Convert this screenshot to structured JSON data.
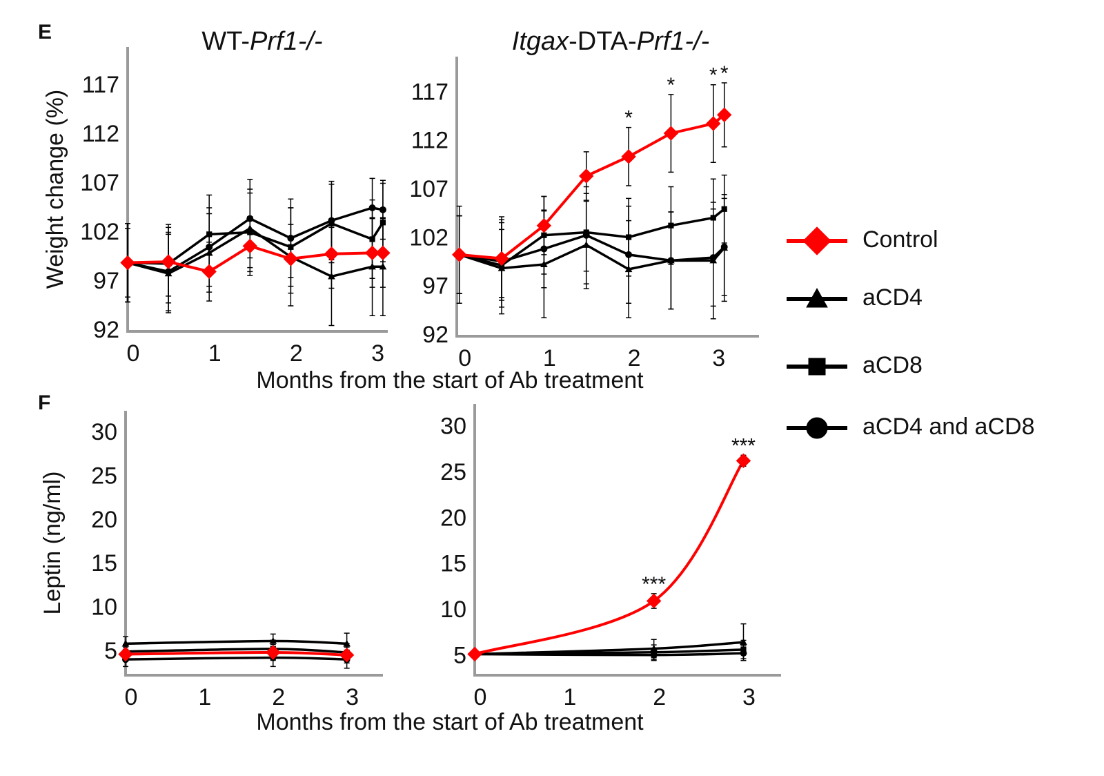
{
  "chart_data": [
    {
      "type": "line",
      "panel": "E",
      "title": [
        "WT-",
        "Prf1-/-"
      ],
      "title_italic": [
        false,
        true
      ],
      "ylabel": "Weight change (%)",
      "xlabel": "Months from the start of Ab treatment",
      "x": [
        0,
        0.5,
        1,
        1.5,
        2,
        2.5,
        3,
        3.13
      ],
      "xlim": [
        0,
        3.19
      ],
      "xticks": [
        0,
        1,
        2,
        3
      ],
      "ylim": [
        92,
        121
      ],
      "yticks": [
        92,
        97,
        102,
        107,
        112,
        117
      ],
      "series": [
        {
          "name": "Control",
          "color": "#ff0000",
          "marker": "diamond",
          "values": [
            99.0,
            99.1,
            98.1,
            100.7,
            99.4,
            99.9,
            100.0,
            100.0
          ],
          "errors": [
            3.5,
            3.5,
            3,
            3,
            3.5,
            3.5,
            3.5,
            3.5
          ]
        },
        {
          "name": "aCD4",
          "color": "#000000",
          "marker": "triangle",
          "values": [
            99.0,
            97.9,
            100.0,
            102.5,
            99.6,
            97.6,
            98.6,
            98.6
          ],
          "errors": [
            4,
            4,
            4,
            4,
            5,
            5,
            5,
            5
          ]
        },
        {
          "name": "aCD8",
          "color": "#000000",
          "marker": "square",
          "values": [
            99.0,
            98.9,
            101.9,
            102.1,
            100.6,
            103.0,
            101.4,
            103.1
          ],
          "errors": [
            4,
            4,
            4,
            4,
            4,
            4,
            4,
            4
          ]
        },
        {
          "name": "aCD4 and aCD8",
          "color": "#000000",
          "marker": "circle",
          "values": [
            99.0,
            98.1,
            100.6,
            103.5,
            101.5,
            103.3,
            104.6,
            104.4
          ],
          "errors": [
            4,
            4,
            4,
            4,
            4,
            4,
            3,
            3
          ]
        }
      ]
    },
    {
      "type": "line",
      "title": [
        "Itgax",
        "-DTA-",
        "Prf1-/-"
      ],
      "title_italic": [
        true,
        false,
        true
      ],
      "x": [
        0,
        0.5,
        1,
        1.5,
        2,
        2.5,
        3,
        3.13
      ],
      "xlim": [
        -0.03,
        3.54
      ],
      "xticks": [
        0,
        1,
        2,
        3
      ],
      "ylim": [
        92,
        120.8
      ],
      "yticks": [
        92,
        97,
        102,
        107,
        112,
        117
      ],
      "annotations": [
        {
          "text": "*",
          "x": 2
        },
        {
          "text": "*",
          "x": 2.5
        },
        {
          "text": "*",
          "x": 3
        },
        {
          "text": "*",
          "x": 3.13
        }
      ],
      "series": [
        {
          "name": "Control",
          "color": "#ff0000",
          "marker": "diamond",
          "values": [
            100.4,
            100.0,
            103.4,
            108.5,
            110.5,
            112.9,
            113.9,
            114.8
          ],
          "errors": [
            5,
            4,
            3,
            2.5,
            3,
            4,
            4,
            3.3
          ]
        },
        {
          "name": "aCD4",
          "color": "#000000",
          "marker": "triangle",
          "values": [
            100.4,
            99.0,
            99.4,
            101.4,
            98.9,
            99.8,
            99.8,
            101.1
          ],
          "errors": [
            4,
            4,
            5.5,
            4.5,
            5,
            5,
            6,
            5.5
          ]
        },
        {
          "name": "aCD8",
          "color": "#000000",
          "marker": "square",
          "values": [
            100.4,
            99.3,
            102.4,
            102.7,
            102.2,
            103.4,
            104.2,
            105.1
          ],
          "errors": [
            4,
            5,
            4,
            4,
            4,
            4,
            4,
            3.5
          ]
        },
        {
          "name": "aCD4 and aCD8",
          "color": "#000000",
          "marker": "circle",
          "values": [
            100.4,
            99.7,
            101.0,
            102.4,
            100.4,
            99.8,
            100.1,
            101.2
          ],
          "errors": [
            4,
            4,
            4,
            5,
            5,
            5,
            5,
            5
          ]
        }
      ]
    },
    {
      "type": "line",
      "panel": "F",
      "smooth": true,
      "ylabel": "Leptin (ng/ml)",
      "xlabel": "Months from the start of Ab treatment",
      "x": [
        0,
        2,
        3
      ],
      "xlim": [
        0,
        3.49
      ],
      "xticks": [
        0,
        1,
        2,
        3
      ],
      "ylim": [
        2.4,
        32.6
      ],
      "yticks": [
        5,
        10,
        15,
        20,
        25,
        30
      ],
      "series": [
        {
          "name": "Control",
          "color": "#ff0000",
          "marker": "diamond",
          "values": [
            4.8,
            5.0,
            4.7
          ],
          "errors": [
            0.8,
            0.9,
            0.9
          ]
        },
        {
          "name": "aCD4",
          "color": "#000000",
          "marker": "triangle",
          "values": [
            6.0,
            6.3,
            6.0
          ],
          "errors": [
            0.8,
            0.8,
            1.2
          ]
        },
        {
          "name": "aCD8",
          "color": "#000000",
          "marker": "square",
          "values": [
            5.1,
            5.4,
            5.0
          ],
          "errors": [
            0.8,
            1,
            1
          ]
        },
        {
          "name": "aCD4 and aCD8",
          "color": "#000000",
          "marker": "circle",
          "values": [
            4.2,
            4.4,
            4.2
          ],
          "errors": [
            0.8,
            1,
            1
          ]
        }
      ]
    },
    {
      "type": "line",
      "smooth": true,
      "x": [
        0,
        2,
        3
      ],
      "xlim": [
        0,
        3.42
      ],
      "xticks": [
        0,
        1,
        2,
        3
      ],
      "ylim": [
        3.0,
        32.6
      ],
      "yticks": [
        5,
        10,
        15,
        20,
        25,
        30
      ],
      "annotations": [
        {
          "text": "***",
          "x": 2
        },
        {
          "text": "***",
          "x": 3
        }
      ],
      "series": [
        {
          "name": "Control",
          "color": "#ff0000",
          "marker": "diamond",
          "values": [
            5.3,
            11.1,
            26.4
          ],
          "errors": [
            0.3,
            0.8,
            0.6
          ]
        },
        {
          "name": "aCD4",
          "color": "#000000",
          "marker": "triangle",
          "values": [
            5.3,
            5.9,
            6.6
          ],
          "errors": [
            0.3,
            1,
            2
          ]
        },
        {
          "name": "aCD8",
          "color": "#000000",
          "marker": "square",
          "values": [
            5.3,
            5.5,
            5.8
          ],
          "errors": [
            0.3,
            0.8,
            1
          ]
        },
        {
          "name": "aCD4 and aCD8",
          "color": "#000000",
          "marker": "circle",
          "values": [
            5.3,
            5.2,
            5.4
          ],
          "errors": [
            0.3,
            0.6,
            0.8
          ]
        }
      ]
    }
  ]
}
